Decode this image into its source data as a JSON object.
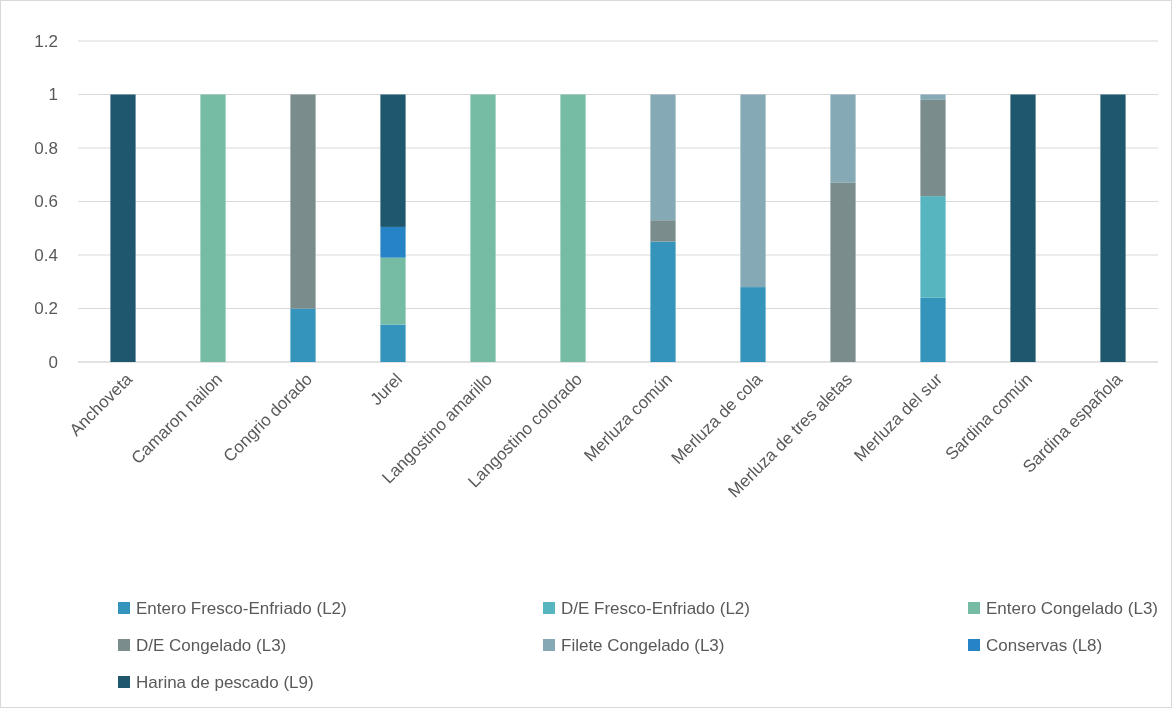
{
  "chart_data": {
    "type": "bar",
    "stacked": true,
    "categories": [
      "Anchoveta",
      "Camaron nailon",
      "Congrio dorado",
      "Jurel",
      "Langostino amarillo",
      "Langostino colorado",
      "Merluza común",
      "Merluza de cola",
      "Merluza de tres aletas",
      "Merluza del sur",
      "Sardina común",
      "Sardina española"
    ],
    "series": [
      {
        "name": "Entero Fresco-Enfriado (L2)",
        "color": "#3494bc",
        "values": [
          0,
          0,
          0.2,
          0.14,
          0,
          0,
          0.45,
          0.28,
          0,
          0.24,
          0,
          0
        ]
      },
      {
        "name": "D/E Fresco-Enfriado (L2)",
        "color": "#57b5bf",
        "values": [
          0,
          0,
          0,
          0,
          0,
          0,
          0,
          0,
          0,
          0.38,
          0,
          0
        ]
      },
      {
        "name": "Entero Congelado (L3)",
        "color": "#76bca4",
        "values": [
          0,
          1,
          0,
          0.25,
          1,
          1,
          0,
          0,
          0,
          0,
          0,
          0
        ]
      },
      {
        "name": "D/E Congelado (L3)",
        "color": "#7b8c8d",
        "values": [
          0,
          0,
          0.8,
          0,
          0,
          0,
          0.08,
          0,
          0.67,
          0.36,
          0,
          0
        ]
      },
      {
        "name": "Filete Congelado (L3)",
        "color": "#85aab5",
        "values": [
          0,
          0,
          0,
          0,
          0,
          0,
          0.47,
          0.72,
          0.33,
          0.02,
          0,
          0
        ]
      },
      {
        "name": "Conservas (L8)",
        "color": "#2683c6",
        "values": [
          0,
          0,
          0,
          0.115,
          0,
          0,
          0,
          0,
          0,
          0,
          0,
          0
        ]
      },
      {
        "name": "Harina de pescado (L9)",
        "color": "#1f586e",
        "values": [
          1,
          0,
          0,
          0.495,
          0,
          0,
          0,
          0,
          0,
          0,
          1,
          1
        ]
      }
    ],
    "ylim": [
      0,
      1.2
    ],
    "yticks": [
      0,
      0.2,
      0.4,
      0.6,
      0.8,
      1,
      1.2
    ],
    "grid": "y",
    "legend": "bottom"
  }
}
